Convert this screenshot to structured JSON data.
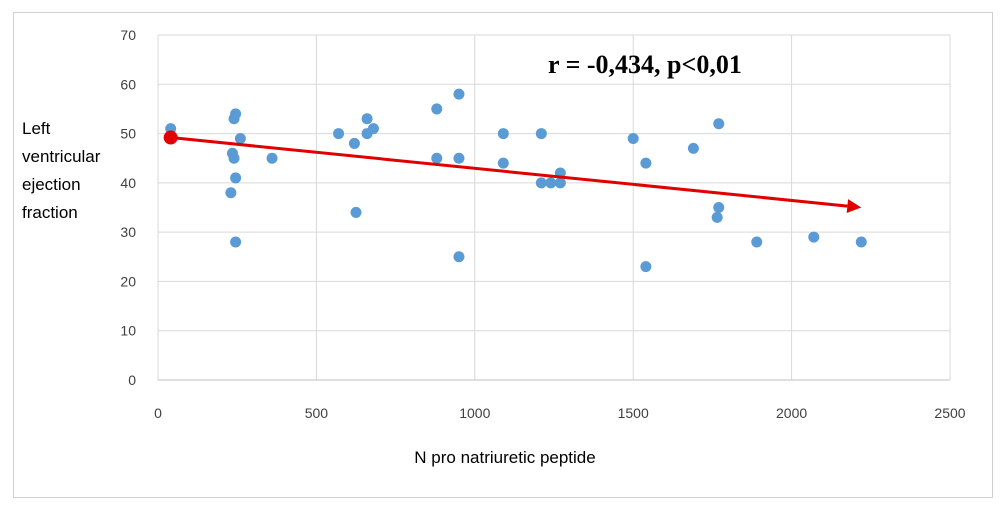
{
  "chart_data": {
    "type": "scatter",
    "title": "",
    "xlabel": "N pro natriuretic peptide",
    "ylabel": "Left\nventricular\nejection\nfraction",
    "xlim": [
      0,
      2500
    ],
    "ylim": [
      0,
      70
    ],
    "xticks": [
      0,
      500,
      1000,
      1500,
      2000,
      2500
    ],
    "yticks": [
      0,
      10,
      20,
      30,
      40,
      50,
      60,
      70
    ],
    "grid": true,
    "annotation": "r = -0,434, p<0,01",
    "colors": {
      "points": "#5b9bd5",
      "trend": "#e00000",
      "grid": "#d9d9d9"
    },
    "series": [
      {
        "points": [
          [
            40,
            51
          ],
          [
            235,
            46
          ],
          [
            240,
            45
          ],
          [
            245,
            41
          ],
          [
            240,
            53
          ],
          [
            245,
            54
          ],
          [
            260,
            49
          ],
          [
            230,
            38
          ],
          [
            245,
            28
          ],
          [
            360,
            45
          ],
          [
            570,
            50
          ],
          [
            620,
            48
          ],
          [
            625,
            34
          ],
          [
            660,
            53
          ],
          [
            660,
            50
          ],
          [
            680,
            51
          ],
          [
            880,
            55
          ],
          [
            880,
            45
          ],
          [
            950,
            58
          ],
          [
            950,
            45
          ],
          [
            950,
            25
          ],
          [
            1090,
            50
          ],
          [
            1090,
            44
          ],
          [
            1210,
            50
          ],
          [
            1210,
            40
          ],
          [
            1240,
            40
          ],
          [
            1270,
            42
          ],
          [
            1270,
            40
          ],
          [
            1500,
            49
          ],
          [
            1540,
            44
          ],
          [
            1540,
            23
          ],
          [
            1690,
            47
          ],
          [
            1770,
            52
          ],
          [
            1770,
            35
          ],
          [
            1765,
            33
          ],
          [
            1890,
            28
          ],
          [
            2070,
            29
          ],
          [
            2220,
            28
          ]
        ]
      }
    ],
    "trendline": {
      "x": [
        40,
        2220
      ],
      "y": [
        49.2,
        35
      ]
    }
  }
}
